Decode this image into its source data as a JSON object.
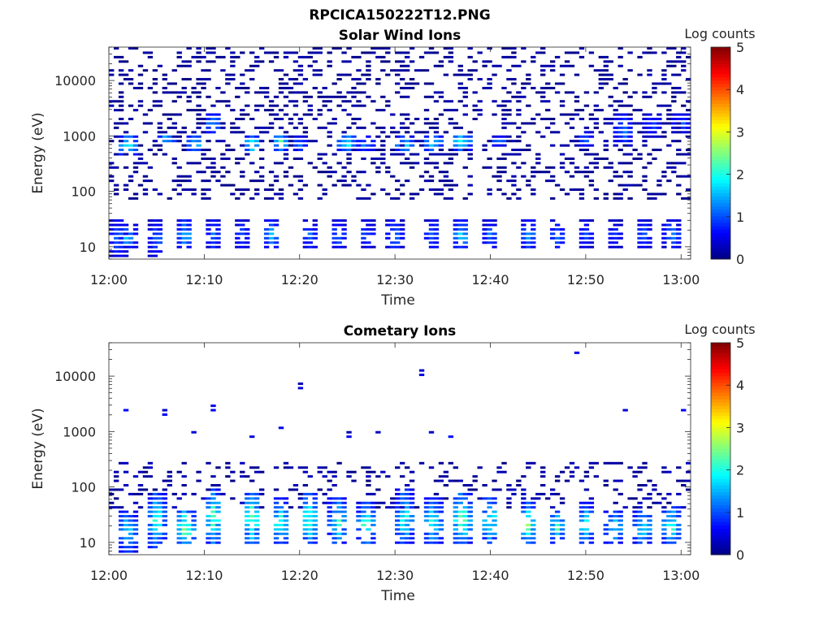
{
  "figure_title": "RPCICA150222T12.PNG",
  "chart_data": [
    {
      "type": "heatmap",
      "title": "Solar Wind Ions",
      "xlabel": "Time",
      "ylabel": "Energy (eV)",
      "x_ticks": [
        "12:00",
        "12:10",
        "12:20",
        "12:30",
        "12:40",
        "12:50",
        "13:00"
      ],
      "xlim": [
        "12:00",
        "13:01"
      ],
      "y_scale": "log",
      "y_ticks": [
        "10",
        "100",
        "1000",
        "10000"
      ],
      "ylim": [
        6,
        40000
      ],
      "colorbar": {
        "label": "Log counts",
        "ticks": [
          "0",
          "1",
          "2",
          "3",
          "4",
          "5"
        ],
        "range": [
          0,
          5
        ],
        "colormap": "jet"
      },
      "background_scatter": {
        "energy_range": [
          60,
          40000
        ],
        "value_range": [
          0.0,
          0.25
        ],
        "density": 0.3
      },
      "bursts": [
        {
          "t": "12:02",
          "e_low": 380,
          "e_high": 1100,
          "peak": 2.2
        },
        {
          "t": "12:06",
          "e_low": 650,
          "e_high": 1100,
          "peak": 2.0
        },
        {
          "t": "12:09",
          "e_low": 480,
          "e_high": 1000,
          "peak": 2.1
        },
        {
          "t": "12:11",
          "e_low": 1000,
          "e_high": 2700,
          "peak": 1.6
        },
        {
          "t": "12:15",
          "e_low": 450,
          "e_high": 1050,
          "peak": 2.3
        },
        {
          "t": "12:18",
          "e_low": 500,
          "e_high": 1100,
          "peak": 2.4
        },
        {
          "t": "12:20",
          "e_low": 500,
          "e_high": 950,
          "peak": 1.5
        },
        {
          "t": "12:25",
          "e_low": 450,
          "e_high": 1100,
          "peak": 2.2
        },
        {
          "t": "12:27",
          "e_low": 500,
          "e_high": 950,
          "peak": 1.6
        },
        {
          "t": "12:31",
          "e_low": 450,
          "e_high": 1000,
          "peak": 2.0
        },
        {
          "t": "12:34",
          "e_low": 500,
          "e_high": 1050,
          "peak": 2.3
        },
        {
          "t": "12:37",
          "e_low": 500,
          "e_high": 1100,
          "peak": 2.5
        },
        {
          "t": "12:41",
          "e_low": 600,
          "e_high": 1000,
          "peak": 1.4
        },
        {
          "t": "12:50",
          "e_low": 600,
          "e_high": 1200,
          "peak": 1.3
        },
        {
          "t": "12:54",
          "e_low": 600,
          "e_high": 2700,
          "peak": 1.5
        },
        {
          "t": "12:57",
          "e_low": 900,
          "e_high": 2500,
          "peak": 1.2
        },
        {
          "t": "13:00",
          "e_low": 1000,
          "e_high": 2600,
          "peak": 1.3
        }
      ],
      "low_energy_bursts": [
        {
          "t": "12:01",
          "e_low": 6,
          "e_high": 30,
          "peak": 1.4
        },
        {
          "t": "12:02",
          "e_low": 8,
          "e_high": 25,
          "peak": 1.8
        },
        {
          "t": "12:05",
          "e_low": 6,
          "e_high": 30,
          "peak": 1.3
        },
        {
          "t": "12:08",
          "e_low": 8,
          "e_high": 30,
          "peak": 1.9
        },
        {
          "t": "12:11",
          "e_low": 8,
          "e_high": 30,
          "peak": 1.4
        },
        {
          "t": "12:14",
          "e_low": 8,
          "e_high": 30,
          "peak": 1.2
        },
        {
          "t": "12:17",
          "e_low": 8,
          "e_high": 30,
          "peak": 1.7
        },
        {
          "t": "12:21",
          "e_low": 8,
          "e_high": 30,
          "peak": 1.3
        },
        {
          "t": "12:24",
          "e_low": 8,
          "e_high": 30,
          "peak": 1.4
        },
        {
          "t": "12:27",
          "e_low": 8,
          "e_high": 30,
          "peak": 1.2
        },
        {
          "t": "12:30",
          "e_low": 8,
          "e_high": 30,
          "peak": 1.5
        },
        {
          "t": "12:34",
          "e_low": 8,
          "e_high": 30,
          "peak": 1.4
        },
        {
          "t": "12:37",
          "e_low": 8,
          "e_high": 30,
          "peak": 2.0
        },
        {
          "t": "12:40",
          "e_low": 8,
          "e_high": 30,
          "peak": 1.3
        },
        {
          "t": "12:44",
          "e_low": 8,
          "e_high": 30,
          "peak": 1.6
        },
        {
          "t": "12:47",
          "e_low": 8,
          "e_high": 30,
          "peak": 1.4
        },
        {
          "t": "12:50",
          "e_low": 8,
          "e_high": 30,
          "peak": 1.1
        },
        {
          "t": "12:53",
          "e_low": 8,
          "e_high": 30,
          "peak": 1.0
        },
        {
          "t": "12:56",
          "e_low": 8,
          "e_high": 30,
          "peak": 1.3
        },
        {
          "t": "12:59",
          "e_low": 8,
          "e_high": 30,
          "peak": 1.5
        }
      ]
    },
    {
      "type": "heatmap",
      "title": "Cometary Ions",
      "xlabel": "Time",
      "ylabel": "Energy (eV)",
      "x_ticks": [
        "12:00",
        "12:10",
        "12:20",
        "12:30",
        "12:40",
        "12:50",
        "13:00"
      ],
      "xlim": [
        "12:00",
        "13:01"
      ],
      "y_scale": "log",
      "y_ticks": [
        "10",
        "100",
        "1000",
        "10000"
      ],
      "ylim": [
        6,
        40000
      ],
      "colorbar": {
        "label": "Log counts",
        "ticks": [
          "0",
          "1",
          "2",
          "3",
          "4",
          "5"
        ],
        "range": [
          0,
          5
        ],
        "colormap": "jet"
      },
      "background_scatter": {
        "energy_range": [
          40,
          300
        ],
        "value_range": [
          0.0,
          0.35
        ],
        "density": 0.22
      },
      "bursts": [
        {
          "t": "12:02",
          "e_low": 6,
          "e_high": 40,
          "peak": 2.2
        },
        {
          "t": "12:05",
          "e_low": 7,
          "e_high": 80,
          "peak": 2.4
        },
        {
          "t": "12:08",
          "e_low": 8,
          "e_high": 40,
          "peak": 3.0
        },
        {
          "t": "12:11",
          "e_low": 8,
          "e_high": 90,
          "peak": 2.6
        },
        {
          "t": "12:15",
          "e_low": 8,
          "e_high": 80,
          "peak": 2.7
        },
        {
          "t": "12:18",
          "e_low": 8,
          "e_high": 60,
          "peak": 2.5
        },
        {
          "t": "12:21",
          "e_low": 8,
          "e_high": 80,
          "peak": 2.6
        },
        {
          "t": "12:24",
          "e_low": 8,
          "e_high": 60,
          "peak": 2.4
        },
        {
          "t": "12:27",
          "e_low": 8,
          "e_high": 50,
          "peak": 2.5
        },
        {
          "t": "12:31",
          "e_low": 8,
          "e_high": 90,
          "peak": 2.3
        },
        {
          "t": "12:34",
          "e_low": 8,
          "e_high": 60,
          "peak": 2.4
        },
        {
          "t": "12:37",
          "e_low": 8,
          "e_high": 80,
          "peak": 2.8
        },
        {
          "t": "12:40",
          "e_low": 8,
          "e_high": 70,
          "peak": 2.4
        },
        {
          "t": "12:44",
          "e_low": 8,
          "e_high": 50,
          "peak": 2.5
        },
        {
          "t": "12:47",
          "e_low": 8,
          "e_high": 40,
          "peak": 2.3
        },
        {
          "t": "12:50",
          "e_low": 8,
          "e_high": 50,
          "peak": 2.2
        },
        {
          "t": "12:53",
          "e_low": 8,
          "e_high": 40,
          "peak": 2.1
        },
        {
          "t": "12:56",
          "e_low": 8,
          "e_high": 40,
          "peak": 2.3
        },
        {
          "t": "12:59",
          "e_low": 8,
          "e_high": 45,
          "peak": 2.6
        }
      ],
      "sparse_high_energy": [
        {
          "t": "12:02",
          "e": 2500
        },
        {
          "t": "12:06",
          "e": 2000
        },
        {
          "t": "12:09",
          "e": 1000
        },
        {
          "t": "12:11",
          "e": 2500
        },
        {
          "t": "12:15",
          "e": 800
        },
        {
          "t": "12:18",
          "e": 1100
        },
        {
          "t": "12:25",
          "e": 800
        },
        {
          "t": "12:28",
          "e": 1000
        },
        {
          "t": "12:34",
          "e": 900
        },
        {
          "t": "12:36",
          "e": 800
        },
        {
          "t": "12:49",
          "e": 25000
        },
        {
          "t": "12:54",
          "e": 2500
        },
        {
          "t": "13:00",
          "e": 2500
        },
        {
          "t": "12:33",
          "e": 9500
        },
        {
          "t": "12:20",
          "e": 6000
        }
      ]
    }
  ]
}
